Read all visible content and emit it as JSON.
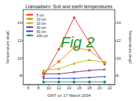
{
  "chart_data": {
    "type": "line",
    "title": "Llansadwrn: Soil and earth temperatures",
    "x_label": "GMT on 17 March 2004",
    "y_label": "Temperature degC",
    "y2_label": "Temperature degC",
    "annotation": "Fig 2",
    "x": [
      9,
      12,
      15,
      18,
      21
    ],
    "xlim": [
      5,
      23
    ],
    "xticks": [
      6,
      8,
      10,
      12,
      14,
      16,
      18,
      20,
      22
    ],
    "ylim": [
      7,
      15.5
    ],
    "yticks": [
      8,
      10,
      12,
      14
    ],
    "y2lim": [
      7,
      15.5
    ],
    "y2ticks": [
      8,
      10,
      12,
      14
    ],
    "legend": "upper left",
    "grid": false,
    "series": [
      {
        "name": "5 cm",
        "color": "#e0301e",
        "marker": "diamond",
        "values": [
          7.9,
          11.0,
          14.6,
          11.8,
          9.3
        ]
      },
      {
        "name": "10 cm",
        "color": "#e8821a",
        "marker": "square",
        "values": [
          8.3,
          9.6,
          11.2,
          10.9,
          9.5
        ]
      },
      {
        "name": "20 cm",
        "color": "#b8b800",
        "marker": "triangle",
        "values": [
          8.6,
          8.8,
          9.4,
          9.8,
          9.5
        ]
      },
      {
        "name": "30 cm",
        "color": "#7a2a8a",
        "marker": "x",
        "values": [
          8.2,
          8.2,
          8.4,
          8.6,
          8.7
        ]
      },
      {
        "name": "50 cm",
        "color": "#2a4ab0",
        "marker": "star",
        "values": [
          7.7,
          7.7,
          7.7,
          7.8,
          7.9
        ]
      },
      {
        "name": "100 cm",
        "color": "#1a8a8a",
        "marker": "circle",
        "values": [
          7.3,
          7.3,
          7.3,
          7.3,
          7.3
        ]
      }
    ]
  }
}
